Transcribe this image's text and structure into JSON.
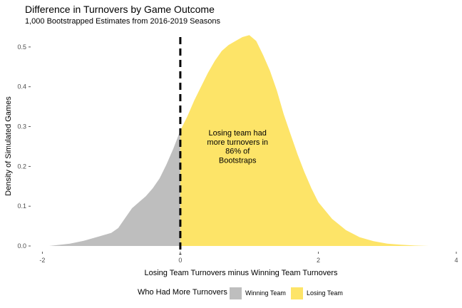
{
  "chart_data": {
    "type": "area",
    "title": "Difference in Turnovers by Game Outcome",
    "subtitle": "1,000 Bootstrapped Estimates from 2016-2019 Seasons",
    "xlabel": "Losing Team Turnovers minus Winning Team Turnovers",
    "ylabel": "Density of Simulated Games",
    "xlim": [
      -2.2,
      4.0
    ],
    "ylim": [
      0,
      0.55
    ],
    "xticks": [
      "-2",
      "0",
      "2",
      "4"
    ],
    "xtick_values": [
      -2,
      0,
      2,
      4
    ],
    "yticks": [
      "0.0",
      "0.1",
      "0.2",
      "0.3",
      "0.4",
      "0.5"
    ],
    "ytick_values": [
      0.0,
      0.1,
      0.2,
      0.3,
      0.4,
      0.5
    ],
    "grid": false,
    "vline": {
      "x": 0,
      "style": "dashed"
    },
    "density": {
      "x": [
        -1.9,
        -1.6,
        -1.4,
        -1.2,
        -1.0,
        -0.9,
        -0.8,
        -0.7,
        -0.6,
        -0.5,
        -0.4,
        -0.3,
        -0.2,
        -0.1,
        0.0,
        0.1,
        0.2,
        0.3,
        0.4,
        0.5,
        0.6,
        0.7,
        0.8,
        0.9,
        1.0,
        1.1,
        1.2,
        1.3,
        1.4,
        1.5,
        1.6,
        1.7,
        1.8,
        1.9,
        2.0,
        2.2,
        2.4,
        2.6,
        2.8,
        3.0,
        3.2,
        3.4,
        3.6
      ],
      "y": [
        0.0,
        0.006,
        0.013,
        0.023,
        0.033,
        0.045,
        0.07,
        0.095,
        0.11,
        0.125,
        0.145,
        0.17,
        0.205,
        0.245,
        0.29,
        0.325,
        0.365,
        0.4,
        0.435,
        0.465,
        0.49,
        0.505,
        0.515,
        0.525,
        0.53,
        0.515,
        0.48,
        0.44,
        0.39,
        0.33,
        0.28,
        0.23,
        0.185,
        0.145,
        0.11,
        0.068,
        0.04,
        0.022,
        0.012,
        0.006,
        0.003,
        0.001,
        0.0
      ]
    },
    "series": [
      {
        "name": "Winning Team",
        "range": [
          -1.9,
          0
        ],
        "color": "#bebebe"
      },
      {
        "name": "Losing Team",
        "range": [
          0,
          3.6
        ],
        "color": "#fde468"
      }
    ],
    "legend": {
      "title": "Who Had More Turnovers",
      "placement": "bottom"
    },
    "annotation": {
      "lines": [
        "Losing team had",
        "more turnovers in",
        "86% of",
        "Bootstraps"
      ],
      "x": 0.83,
      "y": [
        0.285,
        0.262,
        0.239,
        0.216
      ]
    }
  }
}
